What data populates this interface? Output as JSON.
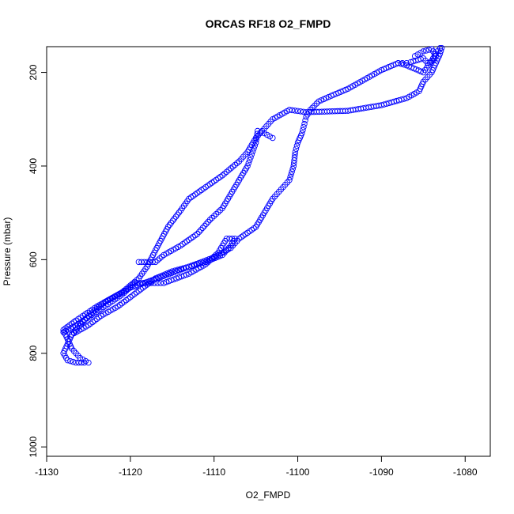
{
  "chart_data": {
    "type": "scatter",
    "title": "ORCAS RF18 O2_FMPD",
    "xlabel": "O2_FMPD",
    "ylabel": "Pressure (mbar)",
    "xlim": [
      -1130,
      -1077
    ],
    "ylim": [
      1020,
      145
    ],
    "y_reversed": true,
    "x_ticks": [
      -1130,
      -1120,
      -1110,
      -1100,
      -1090,
      -1080
    ],
    "x_tick_labels": [
      "-1130",
      "-1120",
      "-1110",
      "-1100",
      "-1090",
      "-1080"
    ],
    "y_ticks": [
      200,
      400,
      600,
      800,
      1000
    ],
    "y_tick_labels": [
      "200",
      "400",
      "600",
      "800",
      "1000"
    ],
    "marker": "open-circle",
    "color": "#0000ff",
    "grid": false,
    "legend": "none",
    "series": [
      {
        "values": [
          [
            -1083,
            148
          ],
          [
            -1083.5,
            160
          ],
          [
            -1084,
            175
          ],
          [
            -1085,
            200
          ],
          [
            -1087,
            185
          ],
          [
            -1088,
            180
          ],
          [
            -1090,
            195
          ],
          [
            -1092,
            215
          ],
          [
            -1094,
            235
          ],
          [
            -1096,
            250
          ],
          [
            -1097.5,
            262
          ],
          [
            -1098.5,
            280
          ],
          [
            -1099,
            295
          ],
          [
            -1099.2,
            310
          ],
          [
            -1099.5,
            330
          ],
          [
            -1100,
            350
          ],
          [
            -1100.3,
            370
          ],
          [
            -1100.5,
            400
          ],
          [
            -1101,
            430
          ],
          [
            -1102,
            450
          ],
          [
            -1103,
            470
          ],
          [
            -1104,
            500
          ],
          [
            -1105,
            530
          ],
          [
            -1107,
            555
          ],
          [
            -1108,
            575
          ],
          [
            -1110,
            595
          ],
          [
            -1113,
            615
          ],
          [
            -1116,
            635
          ],
          [
            -1120,
            660
          ],
          [
            -1123,
            690
          ],
          [
            -1125,
            720
          ],
          [
            -1127,
            760
          ],
          [
            -1128,
            800
          ],
          [
            -1127.5,
            815
          ],
          [
            -1126.5,
            820
          ],
          [
            -1125.5,
            820
          ]
        ]
      },
      {
        "values": [
          [
            -1125,
            820
          ],
          [
            -1126,
            810
          ],
          [
            -1127,
            790
          ],
          [
            -1127.5,
            770
          ],
          [
            -1128,
            750
          ],
          [
            -1126.5,
            730
          ],
          [
            -1124,
            700
          ],
          [
            -1121,
            670
          ],
          [
            -1119,
            640
          ],
          [
            -1118,
            615
          ],
          [
            -1117,
            580
          ],
          [
            -1115.5,
            530
          ],
          [
            -1114,
            495
          ],
          [
            -1113,
            470
          ],
          [
            -1111,
            445
          ],
          [
            -1109,
            420
          ],
          [
            -1107,
            390
          ],
          [
            -1106,
            370
          ],
          [
            -1105,
            340
          ],
          [
            -1104,
            320
          ],
          [
            -1103,
            300
          ],
          [
            -1101,
            280
          ],
          [
            -1099,
            285
          ],
          [
            -1094,
            282
          ],
          [
            -1090,
            270
          ],
          [
            -1087,
            255
          ],
          [
            -1085.5,
            240
          ],
          [
            -1085,
            220
          ],
          [
            -1084,
            200
          ],
          [
            -1083.5,
            180
          ],
          [
            -1083,
            160
          ],
          [
            -1082.8,
            148
          ]
        ]
      },
      {
        "values": [
          [
            -1128,
            755
          ],
          [
            -1126,
            735
          ],
          [
            -1123.5,
            705
          ],
          [
            -1121,
            675
          ],
          [
            -1119.5,
            650
          ],
          [
            -1117.5,
            650
          ],
          [
            -1116,
            650
          ],
          [
            -1113,
            630
          ],
          [
            -1111,
            610
          ],
          [
            -1109.5,
            585
          ],
          [
            -1108.5,
            555
          ],
          [
            -1107.5,
            555
          ],
          [
            -1108,
            570
          ],
          [
            -1109,
            590
          ],
          [
            -1111,
            605
          ],
          [
            -1113,
            615
          ],
          [
            -1115,
            625
          ],
          [
            -1117,
            640
          ],
          [
            -1118.5,
            660
          ],
          [
            -1120,
            680
          ],
          [
            -1121.5,
            700
          ],
          [
            -1123.5,
            720
          ],
          [
            -1125,
            740
          ],
          [
            -1127,
            760
          ]
        ]
      },
      {
        "values": [
          [
            -1119,
            605
          ],
          [
            -1118,
            605
          ],
          [
            -1117,
            605
          ],
          [
            -1116,
            590
          ],
          [
            -1114,
            570
          ],
          [
            -1112,
            545
          ],
          [
            -1110.5,
            515
          ],
          [
            -1109,
            490
          ],
          [
            -1108,
            460
          ],
          [
            -1107,
            430
          ],
          [
            -1106,
            400
          ],
          [
            -1105.5,
            375
          ],
          [
            -1105,
            350
          ],
          [
            -1104.8,
            325
          ],
          [
            -1104,
            330
          ],
          [
            -1103,
            340
          ]
        ]
      },
      {
        "values": [
          [
            -1088,
            180
          ],
          [
            -1087.5,
            180
          ],
          [
            -1087,
            180
          ],
          [
            -1086.5,
            178
          ],
          [
            -1085,
            170
          ],
          [
            -1084.5,
            180
          ],
          [
            -1083.8,
            175
          ],
          [
            -1083.5,
            165
          ],
          [
            -1084,
            150
          ],
          [
            -1085,
            155
          ],
          [
            -1086,
            165
          ]
        ]
      }
    ]
  }
}
